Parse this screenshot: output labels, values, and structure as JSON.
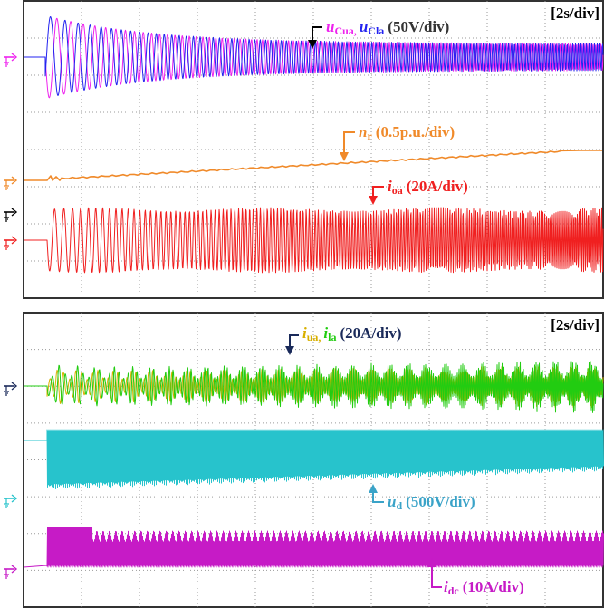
{
  "colors": {
    "uCua": "#ee22ee",
    "uCla": "#2323f0",
    "nr": "#f08a2a",
    "ioa": "#f02020",
    "iua": "#d8b000",
    "ila": "#22cc11",
    "ud": "#27c3cc",
    "idc": "#c61bc6",
    "grid": "#9a9a9a",
    "frame": "#333333",
    "gnd_dark": "#1a2a5a"
  },
  "chart_data": [
    {
      "type": "line",
      "panel": "top",
      "timebase": "[2s/div]",
      "grid": true,
      "divisions": {
        "x": 10,
        "y": 8
      },
      "series": [
        {
          "key": "uCua_uCla",
          "name_parts": [
            "u",
            "Cua,",
            "u",
            "Cla"
          ],
          "scale": "(50V/div)",
          "wave": "decaying oscillation, both phases overlaid"
        },
        {
          "key": "nr",
          "name_parts": [
            "n",
            "r"
          ],
          "scale": "(0.5p.u./div)",
          "wave": "ramp from 0 to about 1.0 p.u."
        },
        {
          "key": "ioa",
          "name_parts": [
            "i",
            "oa"
          ],
          "scale": "(20A/div)",
          "wave": "AC current with increasing frequency"
        }
      ]
    },
    {
      "type": "line",
      "panel": "bottom",
      "timebase": "[2s/div]",
      "grid": true,
      "divisions": {
        "x": 10,
        "y": 8
      },
      "series": [
        {
          "key": "iua_ila",
          "name_parts": [
            "i",
            "ua,",
            "i",
            "la"
          ],
          "scale": "(20A/div)",
          "wave": "arm currents, overlaid"
        },
        {
          "key": "ud",
          "name_parts": [
            "u",
            "d"
          ],
          "scale": "(500V/div)",
          "wave": "pulsed DC voltage, envelope narrowing"
        },
        {
          "key": "idc",
          "name_parts": [
            "i",
            "dc"
          ],
          "scale": "(10A/div)",
          "wave": "pulsed DC current"
        }
      ]
    }
  ]
}
